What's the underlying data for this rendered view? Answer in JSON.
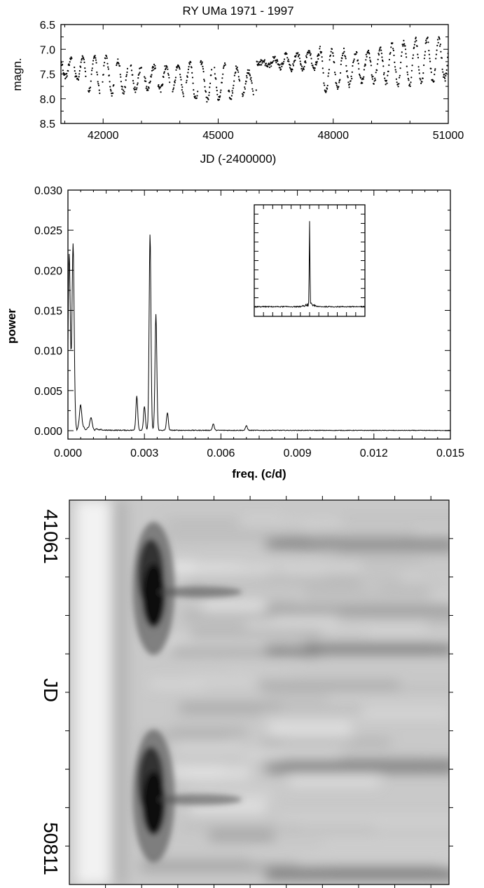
{
  "chart_data": [
    {
      "type": "scatter",
      "title": "RY UMa 1971 - 1997",
      "xlabel": "JD (-2400000)",
      "ylabel": "magn.",
      "xlim": [
        40900,
        51000
      ],
      "ylim": [
        8.5,
        6.5
      ],
      "y_inverted": true,
      "x_ticks": [
        "42000",
        "45000",
        "48000",
        "51000"
      ],
      "x_tick_values": [
        42000,
        45000,
        48000,
        51000
      ],
      "y_ticks": [
        "6.5",
        "7.0",
        "7.5",
        "8.0",
        "8.5"
      ],
      "y_tick_values": [
        6.5,
        7.0,
        7.5,
        8.0,
        8.5
      ],
      "mean_magnitude_segments": [
        {
          "x": [
            40900,
            41500
          ],
          "y": [
            7.35,
            7.4
          ]
        },
        {
          "x": [
            41500,
            46000
          ],
          "y": [
            7.5,
            7.7
          ]
        },
        {
          "x": [
            46000,
            47600
          ],
          "y": [
            7.3,
            7.2
          ]
        },
        {
          "x": [
            47600,
            51000
          ],
          "y": [
            7.45,
            7.2
          ]
        }
      ],
      "main_period_days": 310,
      "amplitude_mag": [
        0.2,
        0.45
      ],
      "grid": false,
      "legend": "none"
    },
    {
      "type": "line",
      "xlabel": "freq. (c/d)",
      "ylabel": "power",
      "xlim": [
        0.0,
        0.015
      ],
      "ylim": [
        -0.001,
        0.03
      ],
      "x_ticks": [
        "0.000",
        "0.003",
        "0.006",
        "0.009",
        "0.012",
        "0.015"
      ],
      "x_tick_values": [
        0.0,
        0.003,
        0.006,
        0.009,
        0.012,
        0.015
      ],
      "y_ticks": [
        "0.000",
        "0.005",
        "0.010",
        "0.015",
        "0.020",
        "0.025",
        "0.030"
      ],
      "y_tick_values": [
        0.0,
        0.005,
        0.01,
        0.015,
        0.02,
        0.025,
        0.03
      ],
      "peaks": [
        {
          "x": 5e-05,
          "y": 0.0215
        },
        {
          "x": 0.0002,
          "y": 0.023
        },
        {
          "x": 0.0005,
          "y": 0.003
        },
        {
          "x": 0.0009,
          "y": 0.0015
        },
        {
          "x": 0.0027,
          "y": 0.0043
        },
        {
          "x": 0.003,
          "y": 0.003
        },
        {
          "x": 0.00322,
          "y": 0.0245
        },
        {
          "x": 0.00345,
          "y": 0.0145
        },
        {
          "x": 0.0039,
          "y": 0.0022
        },
        {
          "x": 0.0057,
          "y": 0.0008
        },
        {
          "x": 0.007,
          "y": 0.0006
        }
      ],
      "inset": {
        "type": "line",
        "description_peak_center": 0.5,
        "peak_height": 0.9
      },
      "grid": false,
      "legend": "none"
    },
    {
      "type": "heatmap",
      "ylabel": "JD",
      "y_ticks": [
        "41061",
        "50811"
      ],
      "y_tick_values": [
        41061,
        50811
      ],
      "x_axis": "freq. (c/d)",
      "dark_features": [
        {
          "freq_frac": 0.2,
          "jd_frac": 0.23,
          "strength": 0.95
        },
        {
          "freq_frac": 0.2,
          "jd_frac": 0.77,
          "strength": 1.0
        }
      ],
      "colormap": "grayscale (dark = high power)",
      "legend": "none"
    }
  ]
}
